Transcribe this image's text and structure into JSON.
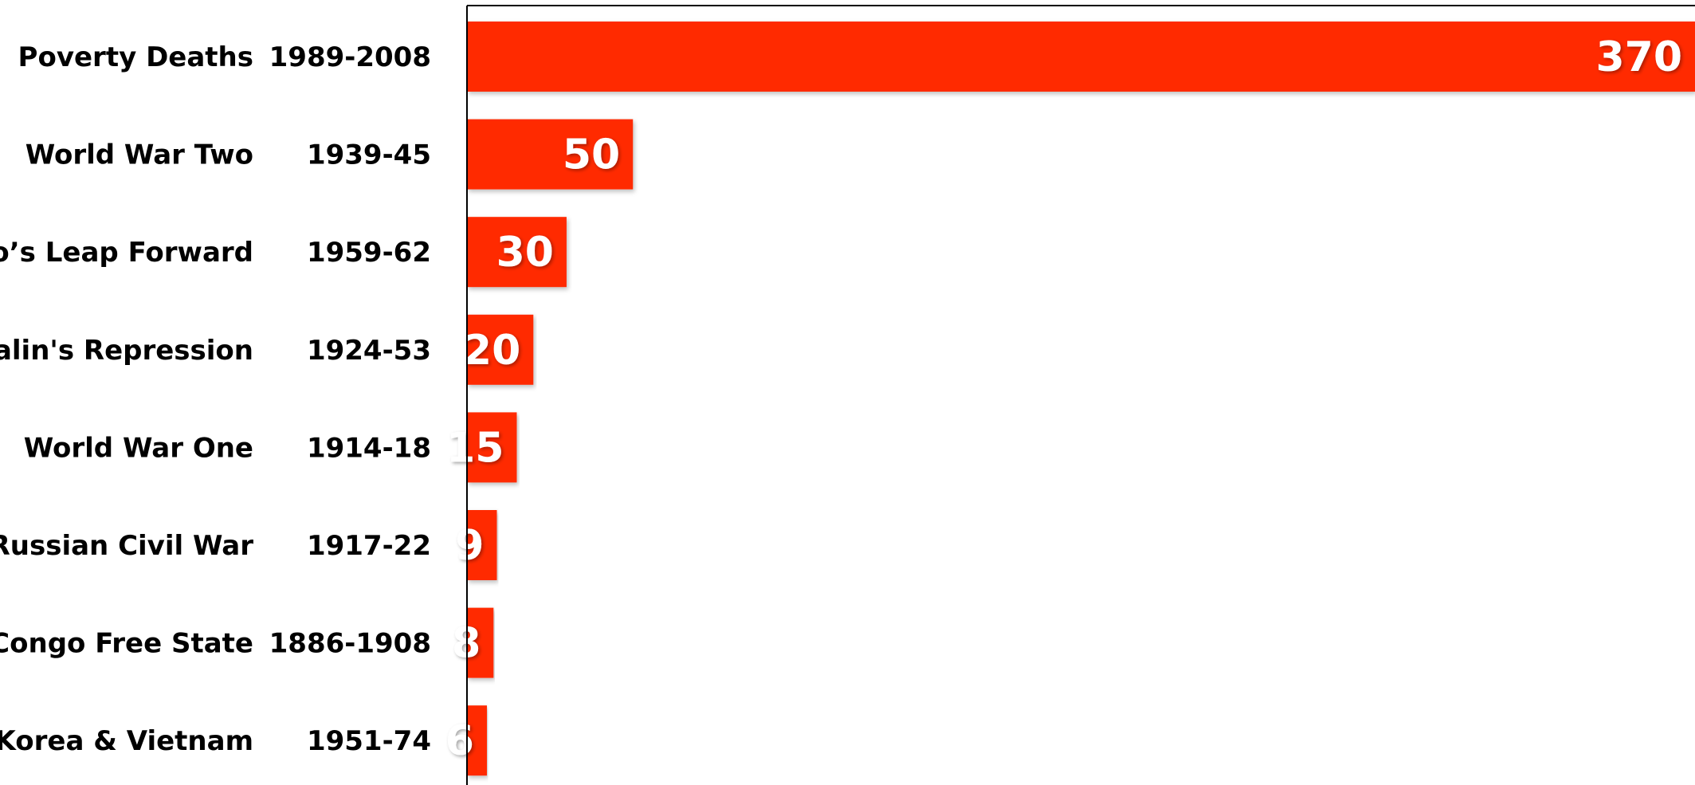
{
  "chart_data": {
    "type": "bar",
    "orientation": "horizontal",
    "categories": [
      {
        "name": "Poverty Deaths",
        "period": "1989-2008"
      },
      {
        "name": "World War Two",
        "period": "1939-45"
      },
      {
        "name": "Mao’s Leap Forward",
        "period": "1959-62"
      },
      {
        "name": "Stalin's Repression",
        "period": "1924-53"
      },
      {
        "name": "World War One",
        "period": "1914-18"
      },
      {
        "name": "Russian Civil War",
        "period": "1917-22"
      },
      {
        "name": "Congo Free State",
        "period": "1886-1908"
      },
      {
        "name": "Korea & Vietnam",
        "period": "1951-74"
      }
    ],
    "values": [
      370,
      50,
      30,
      20,
      15,
      9,
      8,
      6
    ],
    "value_labels": [
      "370",
      "50",
      "30",
      "20",
      "15",
      "9",
      "8",
      "6"
    ],
    "xlim": [
      0,
      370
    ],
    "grid": false,
    "bar_color": "#ff2a00",
    "value_label_color": "#ffffff"
  }
}
